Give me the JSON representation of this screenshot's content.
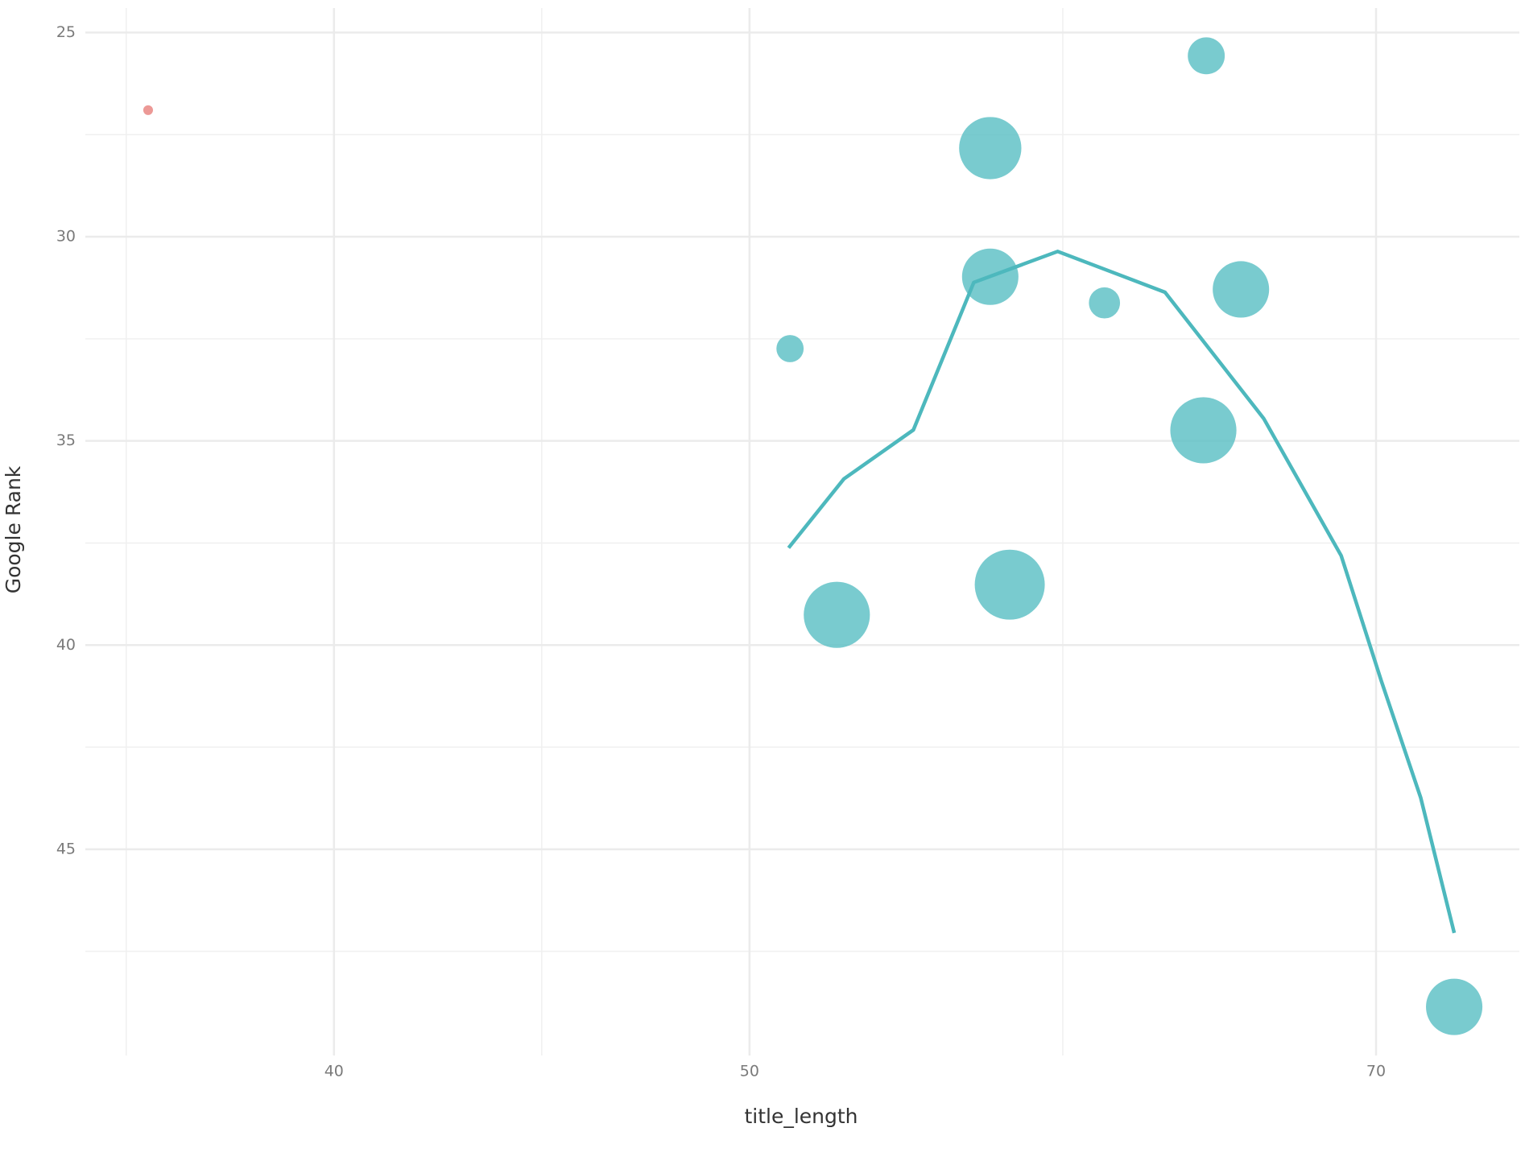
{
  "chart_data": {
    "type": "scatter",
    "x_label": "title_length",
    "y_label": "Google Rank",
    "xlim": [
      35,
      75.6
    ],
    "ylim": [
      24.4,
      50.05
    ],
    "xlog": true,
    "yreversed": true,
    "grid": true,
    "xticks": [
      40,
      50,
      70
    ],
    "yticks": [
      25,
      30,
      35,
      40,
      45
    ],
    "series": [
      {
        "color": "#e8837f",
        "x": [
          36.2
        ],
        "values": [
          26.9
        ],
        "sizes": [
          5
        ]
      },
      {
        "color": "#5bbfc4",
        "x": [
          51.1,
          52.4,
          56.9,
          56.9,
          57.5,
          60.5,
          63.9,
          63.8,
          65.1,
          73
        ],
        "values": [
          32.74,
          39.26,
          27.83,
          30.98,
          38.52,
          31.62,
          25.57,
          34.74,
          31.29,
          48.86
        ],
        "sizes": [
          14,
          34,
          32,
          29,
          36,
          16,
          19,
          34,
          29,
          29
        ]
      }
    ],
    "fit": {
      "type": "line",
      "color": "#4db8bd",
      "x": [
        51.06,
        52.6,
        54.6,
        56.4,
        59.0,
        62.5,
        65.9,
        68.7,
        70.2,
        71.7,
        73
      ],
      "values": [
        37.62,
        35.93,
        34.73,
        31.12,
        30.36,
        31.36,
        34.45,
        37.81,
        40.88,
        43.74,
        47.05
      ]
    }
  }
}
